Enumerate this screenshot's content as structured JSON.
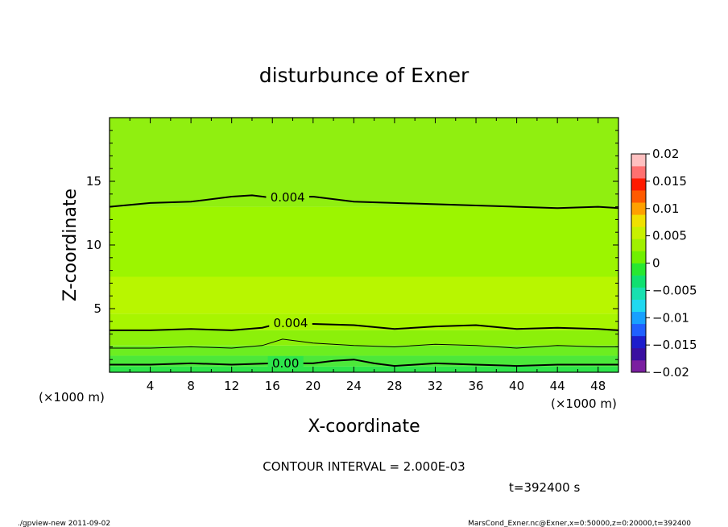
{
  "chart_data": {
    "type": "heatmap",
    "title": "disturbunce of Exner",
    "xlabel": "X-coordinate",
    "ylabel": "Z-coordinate",
    "x_unit": "(×1000 m)",
    "z_unit": "(×1000 m)",
    "x_ticks": [
      4,
      8,
      12,
      16,
      20,
      24,
      28,
      32,
      36,
      40,
      44,
      48
    ],
    "z_ticks": [
      5,
      10,
      15
    ],
    "xlim": [
      0,
      50
    ],
    "zlim": [
      0,
      20
    ],
    "contour_interval_text": "CONTOUR INTERVAL = 2.000E-03",
    "time_text": "t=392400  s",
    "colorbar": {
      "ticks": [
        "0.02",
        "0.015",
        "0.01",
        "0.005",
        "0",
        "−0.005",
        "−0.01",
        "−0.015",
        "−0.02"
      ],
      "range": [
        -0.02,
        0.02
      ],
      "colors": [
        "#7a1fa0",
        "#3a0fa0",
        "#1d1dcc",
        "#2060ff",
        "#18a0ff",
        "#20d8f0",
        "#18e0b0",
        "#10e070",
        "#28e830",
        "#70f000",
        "#a0f000",
        "#c8f000",
        "#f0e000",
        "#ffa000",
        "#ff5a00",
        "#ff1a00",
        "#ff7070",
        "#ffc0c0"
      ]
    },
    "bands": [
      {
        "z_from": 0.0,
        "z_to": 0.45,
        "value_range": "0 to 0.001",
        "color": "#2ee64a"
      },
      {
        "z_from": 0.45,
        "z_to": 1.3,
        "value_range": "0.001 to 0.002",
        "color": "#4ce83a"
      },
      {
        "z_from": 1.3,
        "z_to": 2.1,
        "value_range": "0.002 to 0.003",
        "color": "#6cee20"
      },
      {
        "z_from": 2.1,
        "z_to": 3.3,
        "value_range": "0.003 to 0.004",
        "color": "#8cf00a"
      },
      {
        "z_from": 3.3,
        "z_to": 4.6,
        "value_range": "0.004 to 0.005",
        "color": "#a8f500"
      },
      {
        "z_from": 4.6,
        "z_to": 7.5,
        "value_range": "0.005 to 0.006",
        "color": "#b8f600"
      },
      {
        "z_from": 7.5,
        "z_to": 13.0,
        "value_range": "0.004 to 0.005",
        "color": "#9cf500"
      },
      {
        "z_from": 13.0,
        "z_to": 20.0,
        "value_range": "0.003 to 0.004",
        "color": "#90ef10"
      }
    ],
    "contours": [
      {
        "value": 0.004,
        "label": "0.004",
        "points": [
          [
            0,
            13.0
          ],
          [
            4,
            13.3
          ],
          [
            8,
            13.4
          ],
          [
            12,
            13.8
          ],
          [
            14,
            13.9
          ],
          [
            16,
            13.7
          ],
          [
            20,
            13.8
          ],
          [
            24,
            13.4
          ],
          [
            28,
            13.3
          ],
          [
            32,
            13.2
          ],
          [
            36,
            13.1
          ],
          [
            40,
            13.0
          ],
          [
            44,
            12.9
          ],
          [
            48,
            13.0
          ],
          [
            50,
            12.9
          ]
        ]
      },
      {
        "value": 0.004,
        "label": "0.004",
        "points": [
          [
            0,
            3.3
          ],
          [
            4,
            3.3
          ],
          [
            8,
            3.4
          ],
          [
            12,
            3.3
          ],
          [
            15,
            3.5
          ],
          [
            17,
            3.9
          ],
          [
            20,
            3.8
          ],
          [
            24,
            3.7
          ],
          [
            28,
            3.4
          ],
          [
            32,
            3.6
          ],
          [
            36,
            3.7
          ],
          [
            40,
            3.4
          ],
          [
            44,
            3.5
          ],
          [
            48,
            3.4
          ],
          [
            50,
            3.3
          ]
        ]
      },
      {
        "value": 0.002,
        "label": "",
        "points": [
          [
            0,
            1.9
          ],
          [
            4,
            1.9
          ],
          [
            8,
            2.0
          ],
          [
            12,
            1.9
          ],
          [
            15,
            2.1
          ],
          [
            17,
            2.6
          ],
          [
            20,
            2.3
          ],
          [
            24,
            2.1
          ],
          [
            28,
            2.0
          ],
          [
            32,
            2.2
          ],
          [
            36,
            2.1
          ],
          [
            40,
            1.9
          ],
          [
            44,
            2.1
          ],
          [
            48,
            2.0
          ],
          [
            50,
            2.0
          ]
        ]
      },
      {
        "value": 0.0,
        "label": "0.00",
        "points": [
          [
            0,
            0.6
          ],
          [
            4,
            0.6
          ],
          [
            8,
            0.7
          ],
          [
            12,
            0.6
          ],
          [
            16,
            0.7
          ],
          [
            20,
            0.7
          ],
          [
            22,
            0.9
          ],
          [
            24,
            1.0
          ],
          [
            26,
            0.7
          ],
          [
            28,
            0.5
          ],
          [
            32,
            0.7
          ],
          [
            36,
            0.6
          ],
          [
            40,
            0.5
          ],
          [
            44,
            0.6
          ],
          [
            48,
            0.6
          ],
          [
            50,
            0.6
          ]
        ]
      }
    ],
    "grid": false,
    "legend": "right colorbar"
  },
  "footer": {
    "left": "./gpview-new   2011-09-02",
    "right": "MarsCond_Exner.nc@Exner,x=0:50000,z=0:20000,t=392400"
  }
}
